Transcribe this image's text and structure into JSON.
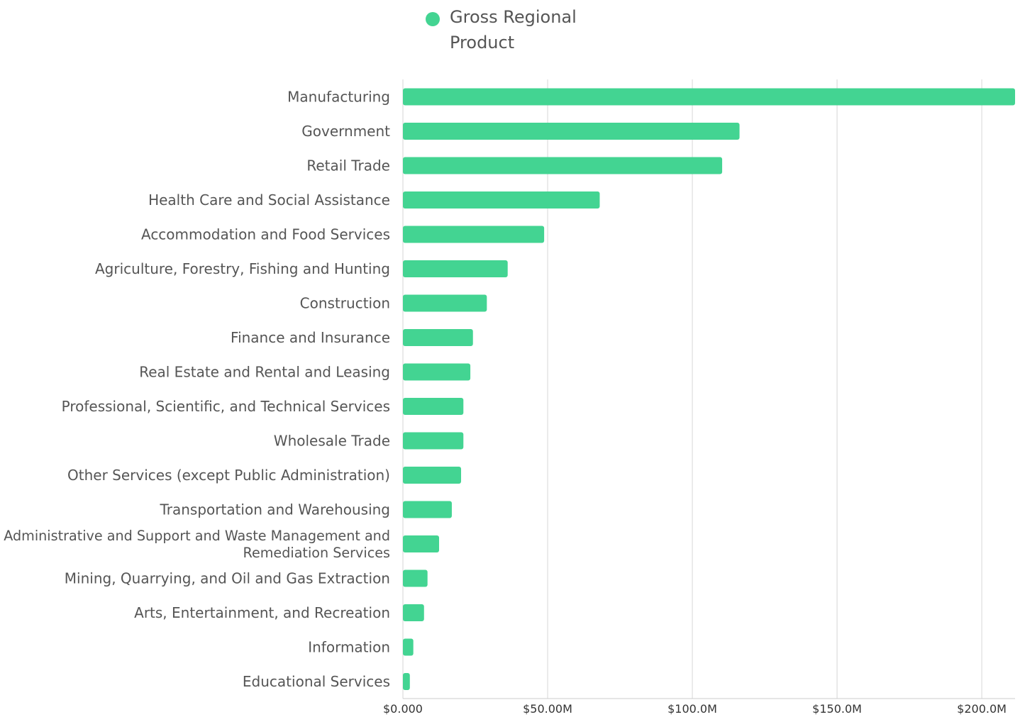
{
  "legend": {
    "label": "Gross Regional Product",
    "color": "#43d492"
  },
  "chart_data": {
    "type": "bar",
    "orientation": "horizontal",
    "title": "",
    "xlabel": "",
    "ylabel": "",
    "xlim": [
      0,
      211.5
    ],
    "grid": "vertical",
    "legend_position": "top",
    "bar_color": "#43d492",
    "x_ticks": [
      0,
      50,
      100,
      150,
      200
    ],
    "x_tick_labels": [
      "$0.000",
      "$50.00M",
      "$100.0M",
      "$150.0M",
      "$200.0M"
    ],
    "categories": [
      "Manufacturing",
      "Government",
      "Retail Trade",
      "Health Care and Social Assistance",
      "Accommodation and Food Services",
      "Agriculture, Forestry, Fishing and Hunting",
      "Construction",
      "Finance and Insurance",
      "Real Estate and Rental and Leasing",
      "Professional, Scientific, and Technical Services",
      "Wholesale Trade",
      "Other Services (except Public Administration)",
      "Transportation and Warehousing",
      "Administrative and Support and Waste Management and Remediation Services",
      "Mining, Quarrying, and Oil and Gas Extraction",
      "Arts, Entertainment, and Recreation",
      "Information",
      "Educational Services"
    ],
    "series": [
      {
        "name": "Gross Regional Product",
        "values": [
          211.5,
          116.3,
          110.3,
          68.0,
          48.8,
          36.2,
          29.0,
          24.2,
          23.3,
          20.9,
          20.9,
          20.1,
          16.9,
          12.5,
          8.5,
          7.3,
          3.6,
          2.4
        ]
      }
    ]
  }
}
